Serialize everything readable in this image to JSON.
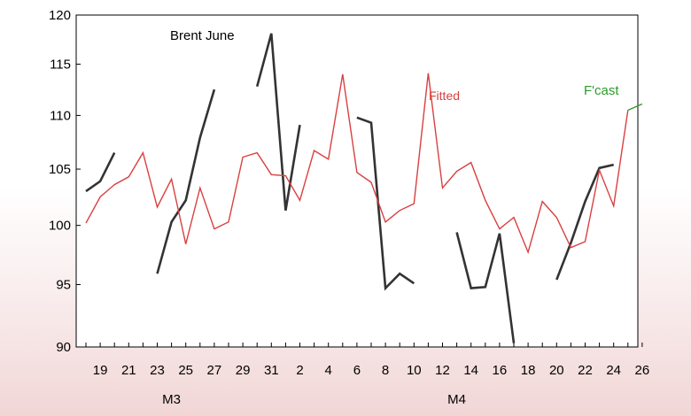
{
  "chart_data": {
    "type": "line",
    "y_ticks": [
      "120",
      "115",
      "110",
      "105",
      "100",
      "95",
      "90"
    ],
    "ylim": [
      90,
      120
    ],
    "y_scale": "log",
    "x_ticks": [
      "19",
      "21",
      "23",
      "25",
      "27",
      "29",
      "31",
      "2",
      "4",
      "6",
      "8",
      "10",
      "12",
      "14",
      "16",
      "18",
      "20",
      "22",
      "24",
      "26"
    ],
    "month_labels": [
      "M3",
      "M4"
    ],
    "colors": {
      "brent": "#333333",
      "fitted": "#d94040",
      "forecast": "#2e9b2e",
      "axis": "#000000"
    },
    "annotations": {
      "brent": "Brent June",
      "fitted": "Fitted",
      "forecast": "F'cast"
    },
    "series": [
      {
        "name": "Brent June",
        "values": [
          103.0,
          103.9,
          106.5,
          null,
          null,
          95.9,
          100.3,
          102.2,
          107.9,
          112.5,
          null,
          null,
          112.8,
          118.1,
          101.3,
          109.1,
          null,
          null,
          null,
          109.8,
          109.3,
          94.7,
          95.9,
          95.1,
          null,
          null,
          99.4,
          94.7,
          94.8,
          99.3,
          90.3,
          null,
          null,
          95.4,
          98.5,
          102.1,
          105.1,
          105.4,
          null,
          null
        ]
      },
      {
        "name": "Fitted",
        "values": [
          100.2,
          102.5,
          103.6,
          104.3,
          106.5,
          101.6,
          104.1,
          98.4,
          103.3,
          99.7,
          100.3,
          106.1,
          106.5,
          104.5,
          104.4,
          102.2,
          106.7,
          105.9,
          114.0,
          104.7,
          103.8,
          100.3,
          101.3,
          101.9,
          114.1,
          103.3,
          104.8,
          105.6,
          102.2,
          99.7,
          100.7,
          97.7,
          102.1,
          100.7,
          98.1,
          98.6,
          104.9,
          101.7,
          110.5,
          null
        ]
      },
      {
        "name": "F'cast",
        "values": [
          null,
          null,
          null,
          null,
          null,
          null,
          null,
          null,
          null,
          null,
          null,
          null,
          null,
          null,
          null,
          null,
          null,
          null,
          null,
          null,
          null,
          null,
          null,
          null,
          null,
          null,
          null,
          null,
          null,
          null,
          null,
          null,
          null,
          null,
          null,
          null,
          null,
          null,
          110.5,
          111.1
        ]
      }
    ]
  }
}
